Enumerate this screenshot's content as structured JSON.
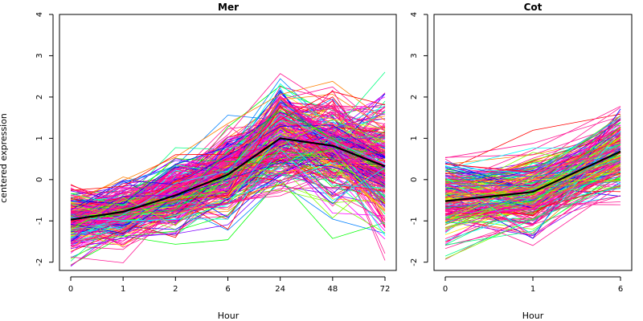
{
  "ylabel": "centered expression",
  "chart_data": [
    {
      "type": "line",
      "title": "Mer",
      "xlabel": "Hour",
      "ylabel": "centered expression",
      "categories": [
        "0",
        "1",
        "2",
        "6",
        "24",
        "48",
        "72"
      ],
      "ylim": [
        -2.2,
        4
      ],
      "yticks": [
        -2,
        -1,
        0,
        1,
        2,
        3,
        4
      ],
      "grid": false,
      "mean_series": {
        "values": [
          -0.97,
          -0.78,
          -0.38,
          0.12,
          1.0,
          0.82,
          0.32
        ],
        "color": "#000000"
      },
      "gene_profiles": {
        "count": 320,
        "spread": [
          0.38,
          0.33,
          0.42,
          0.48,
          0.62,
          0.62,
          0.8
        ],
        "palette": [
          "#ff0000",
          "#ff7f00",
          "#ffdf00",
          "#7fff00",
          "#00ff00",
          "#00ff80",
          "#00ffff",
          "#0080ff",
          "#0000ff",
          "#7f00ff",
          "#ff00ff",
          "#ff0080"
        ],
        "highlight_color": "#ff1493"
      }
    },
    {
      "type": "line",
      "title": "Cot",
      "xlabel": "Hour",
      "categories": [
        "0",
        "1",
        "6"
      ],
      "ylim": [
        -2.2,
        4
      ],
      "yticks": [
        -2,
        -1,
        0,
        1,
        2,
        3,
        4
      ],
      "grid": false,
      "mean_series": {
        "values": [
          -0.52,
          -0.3,
          0.68
        ],
        "color": "#000000"
      },
      "gene_profiles": {
        "count": 240,
        "spread": [
          0.52,
          0.5,
          0.55
        ],
        "palette": [
          "#ff0000",
          "#ff7f00",
          "#ffdf00",
          "#7fff00",
          "#00ff00",
          "#00ff80",
          "#00ffff",
          "#0080ff",
          "#0000ff",
          "#7f00ff",
          "#ff00ff",
          "#ff0080"
        ],
        "highlight_color": "#ff1493"
      }
    }
  ]
}
